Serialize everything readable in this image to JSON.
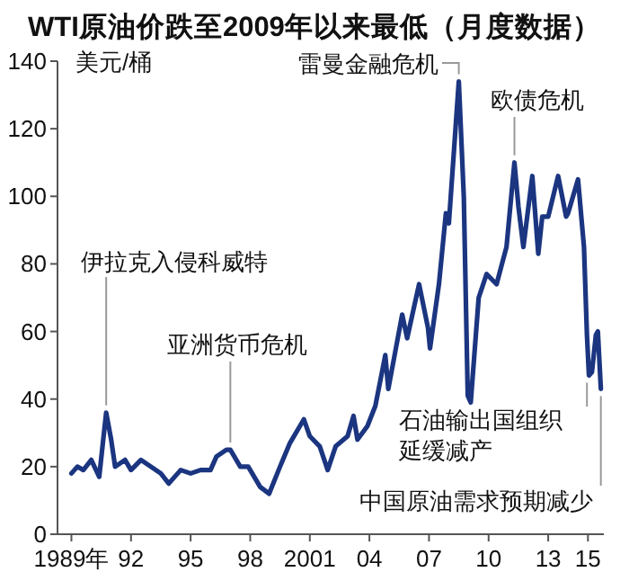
{
  "chart_data": {
    "type": "line",
    "title": "WTI原油价跌至2009年以来最低（月度数据）",
    "ylabel": "美元/桶",
    "xlim": [
      1988.3,
      2015.8
    ],
    "xticks": [
      {
        "value": 1989,
        "label": "1989年"
      },
      {
        "value": 1992,
        "label": "92"
      },
      {
        "value": 1995,
        "label": "95"
      },
      {
        "value": 1998,
        "label": "98"
      },
      {
        "value": 2001,
        "label": "2001"
      },
      {
        "value": 2004,
        "label": "04"
      },
      {
        "value": 2007,
        "label": "07"
      },
      {
        "value": 2010,
        "label": "10"
      },
      {
        "value": 2013,
        "label": "13"
      },
      {
        "value": 2015,
        "label": "15"
      }
    ],
    "ylim": [
      0,
      140
    ],
    "yticks": [
      0,
      20,
      40,
      60,
      80,
      100,
      120,
      140
    ],
    "grid": false,
    "series": [
      {
        "color": "#1b3580",
        "x": [
          1989.0,
          1989.3,
          1989.6,
          1990.0,
          1990.4,
          1990.75,
          1991.0,
          1991.2,
          1991.7,
          1992.0,
          1992.5,
          1993.0,
          1993.5,
          1993.9,
          1994.5,
          1995.0,
          1995.5,
          1996.0,
          1996.3,
          1996.8,
          1997.0,
          1997.5,
          1997.9,
          1998.5,
          1998.95,
          1999.5,
          2000.0,
          2000.7,
          2001.0,
          2001.5,
          2001.9,
          2002.3,
          2002.9,
          2003.2,
          2003.4,
          2003.9,
          2004.3,
          2004.8,
          2004.95,
          2005.3,
          2005.65,
          2005.9,
          2006.5,
          2006.95,
          2007.05,
          2007.5,
          2007.85,
          2008.0,
          2008.5,
          2008.75,
          2008.95,
          2009.1,
          2009.5,
          2009.9,
          2010.4,
          2010.9,
          2011.3,
          2011.5,
          2011.75,
          2012.2,
          2012.5,
          2012.7,
          2013.0,
          2013.5,
          2013.9,
          2014.0,
          2014.5,
          2014.8,
          2014.95,
          2015.05,
          2015.2,
          2015.4,
          2015.5,
          2015.65
        ],
        "values": [
          18,
          20,
          19,
          22,
          17,
          36,
          28,
          20,
          22,
          19,
          22,
          20,
          18,
          15,
          19,
          18,
          19,
          19,
          23,
          25,
          25,
          20,
          20,
          14,
          12,
          20,
          27,
          34,
          29,
          26,
          19,
          26,
          29,
          35,
          28,
          32,
          38,
          53,
          43,
          54,
          65,
          58,
          74,
          61,
          55,
          74,
          95,
          92,
          134,
          100,
          41,
          39,
          70,
          77,
          74,
          85,
          110,
          97,
          85,
          106,
          83,
          94,
          94,
          106,
          94,
          95,
          105,
          85,
          59,
          47,
          48,
          59,
          60,
          43
        ]
      }
    ],
    "annotations": [
      {
        "text": "伊拉克入侵科威特",
        "x": 1990.75,
        "y": 36
      },
      {
        "text": "亚洲货币危机",
        "x": 1997.0,
        "y": 25
      },
      {
        "text": "雷曼金融危机",
        "x": 2008.5,
        "y": 134
      },
      {
        "text": "欧债危机",
        "x": 2011.3,
        "y": 110
      },
      {
        "text": "石油输出国组织延缓减产",
        "x": 2014.95,
        "y": 47
      },
      {
        "text": "中国原油需求预期减少",
        "x": 2015.65,
        "y": 43
      }
    ]
  }
}
